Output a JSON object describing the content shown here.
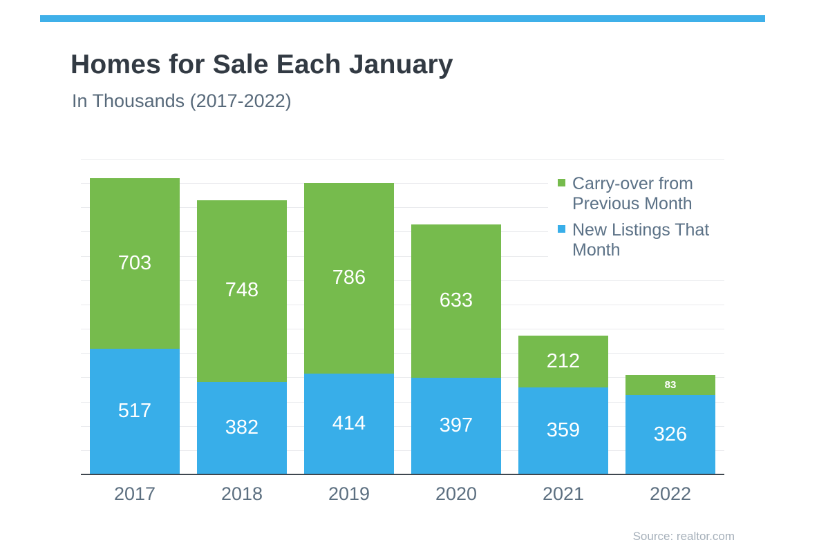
{
  "page": {
    "title": "Homes for Sale Each January",
    "subtitle": "In Thousands (2017-2022)",
    "source": "Source: realtor.com"
  },
  "colors": {
    "top_rule": "#3FB0E9",
    "bar_blue": "#38AEE9",
    "bar_green": "#76BB4D",
    "gridline": "#E9EAED",
    "axis_line": "#3F474F",
    "title_text": "#323A43",
    "subtitle_text": "#57697A",
    "legend_text": "#5B7186",
    "year_label_text": "#5C6F80",
    "value_label_text": "#FFFFFF",
    "source_text": "#A6B0BA"
  },
  "chart_data": {
    "type": "bar",
    "stacked": true,
    "title": "Homes for Sale Each January",
    "subtitle": "In Thousands (2017-2022)",
    "categories": [
      "2017",
      "2018",
      "2019",
      "2020",
      "2021",
      "2022"
    ],
    "series": [
      {
        "key": "new-listings",
        "name": "New Listings That Month",
        "color": "#38AEE9",
        "values": [
          517,
          382,
          414,
          397,
          359,
          326
        ]
      },
      {
        "key": "carry-over",
        "name": "Carry-over from Previous Month",
        "color": "#76BB4D",
        "values": [
          703,
          748,
          786,
          633,
          212,
          83
        ]
      }
    ],
    "totals": [
      1220,
      1130,
      1200,
      1030,
      571,
      409
    ],
    "ylim": [
      0,
      1300
    ],
    "grid_step": 100,
    "grid": true,
    "legend_position": "top-right",
    "legend": [
      {
        "key": "carry-over",
        "label": "Carry-over from Previous Month",
        "color": "#76BB4D"
      },
      {
        "key": "new-listings",
        "label": "New Listings That Month",
        "color": "#38AEE9"
      }
    ],
    "source": "Source: realtor.com"
  }
}
